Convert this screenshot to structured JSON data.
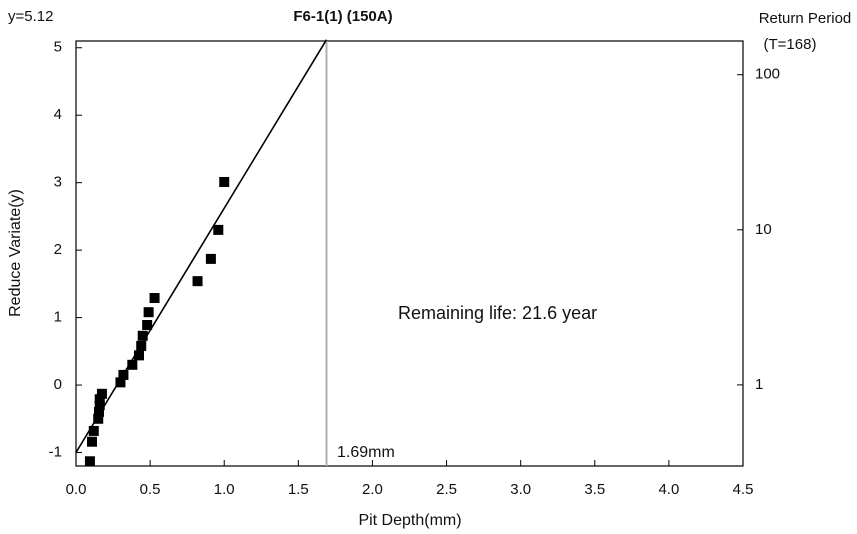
{
  "chart_data": {
    "type": "scatter",
    "title": "F6-1(1) (150A)",
    "corner_note": "y=5.12",
    "x_label": "Pit Depth(mm)",
    "y_label": "Reduce Variate(y)",
    "y2_label": "Return Period",
    "y2_note": "(T=168)",
    "annotation": "Remaining life: 21.6 year",
    "vline_label": "1.69mm",
    "vline_x": 1.69,
    "vline_color": "#b0b0b0",
    "fit_line": {
      "x": [
        0,
        1.69
      ],
      "y": [
        -1.0,
        5.12
      ],
      "color": "#000000"
    },
    "series": [
      {
        "color": "#000000",
        "x": [
          0.094,
          0.108,
          0.12,
          0.15,
          0.155,
          0.16,
          0.16,
          0.175,
          0.3,
          0.32,
          0.38,
          0.425,
          0.44,
          0.45,
          0.48,
          0.49,
          0.53,
          0.82,
          0.91,
          0.96,
          1.0
        ],
        "values": [
          -1.13,
          -0.84,
          -0.68,
          -0.5,
          -0.4,
          -0.3,
          -0.21,
          -0.13,
          0.04,
          0.15,
          0.3,
          0.44,
          0.58,
          0.73,
          0.89,
          1.08,
          1.29,
          1.54,
          1.87,
          2.3,
          3.01
        ]
      }
    ],
    "xlim": [
      0,
      4.5
    ],
    "xticks": [
      {
        "value": 0,
        "label": "0.0"
      },
      0.5,
      {
        "value": 1,
        "label": "1.0"
      },
      1.5,
      {
        "value": 2,
        "label": "2.0"
      },
      2.5,
      {
        "value": 3,
        "label": "3.0"
      },
      3.5,
      {
        "value": 4,
        "label": "4.0"
      },
      4.5
    ],
    "ylim": [
      -1.2,
      5.1
    ],
    "yticks": [
      -1,
      0,
      1,
      2,
      3,
      4,
      5
    ],
    "y2lim": [
      0.3,
      165
    ],
    "y2ticks": [
      1,
      10,
      100
    ],
    "y2_log": true
  }
}
